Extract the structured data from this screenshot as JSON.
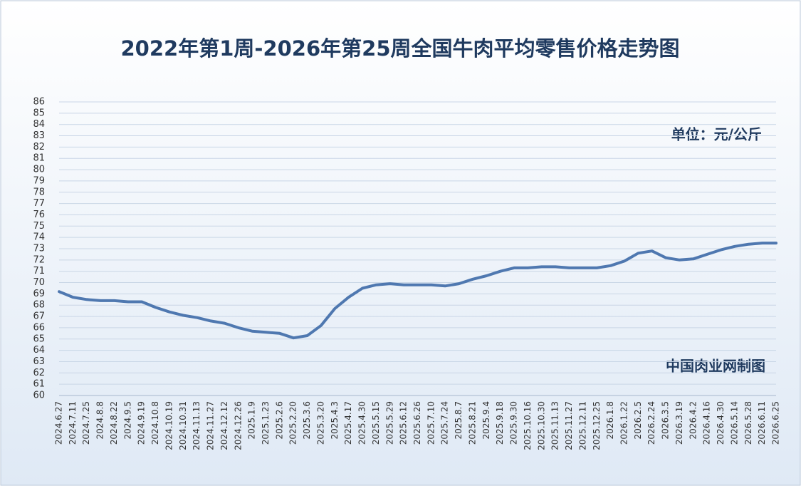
{
  "chart_data": {
    "type": "line",
    "title": "2022年第1周-2026年第25周全国牛肉平均零售价格走势图",
    "unit_label": "单位：元/公斤",
    "source": "中国肉业网制图",
    "categories": [
      "2024.6.27",
      "2024.7.11",
      "2024.7.25",
      "2024.8.8",
      "2024.8.22",
      "2024.9.5",
      "2024.9.19",
      "2024.10.8",
      "2024.10.19",
      "2024.10.31",
      "2024.11.13",
      "2024.11.27",
      "2024.12.12",
      "2024.12.26",
      "2025.1.9",
      "2025.1.23",
      "2025.2.6",
      "2025.2.20",
      "2025.3.6",
      "2025.3.20",
      "2025.4.3",
      "2025.4.17",
      "2025.4.30",
      "2025.5.15",
      "2025.5.29",
      "2025.6.12",
      "2025.6.26",
      "2025.7.10",
      "2025.7.24",
      "2025.8.7",
      "2025.8.21",
      "2025.9.4",
      "2025.9.18",
      "2025.9.30",
      "2025.10.16",
      "2025.10.30",
      "2025.11.13",
      "2025.11.27",
      "2025.12.11",
      "2025.12.25",
      "2026.1.8",
      "2026.1.22",
      "2026.2.5",
      "2026.2.24",
      "2026.3.5",
      "2026.3.19",
      "2026.4.2",
      "2026.4.16",
      "2026.4.30",
      "2026.5.14",
      "2026.5.28",
      "2026.6.11",
      "2026.6.25"
    ],
    "values": [
      69.2,
      68.7,
      68.5,
      68.4,
      68.4,
      68.3,
      68.3,
      67.8,
      67.4,
      67.1,
      66.9,
      66.6,
      66.4,
      66.0,
      65.7,
      65.6,
      65.5,
      65.1,
      65.3,
      66.2,
      67.7,
      68.7,
      69.5,
      69.8,
      69.9,
      69.8,
      69.8,
      69.8,
      69.7,
      69.9,
      70.3,
      70.6,
      71.0,
      71.3,
      71.3,
      71.4,
      71.4,
      71.3,
      71.3,
      71.3,
      71.5,
      71.9,
      72.6,
      72.8,
      72.2,
      72.0,
      72.1,
      72.5,
      72.9,
      73.2,
      73.4,
      73.5,
      73.5
    ],
    "color": "#4f78b0",
    "ylim": [
      60,
      86
    ],
    "yticks": [
      60,
      61,
      62,
      63,
      64,
      65,
      66,
      67,
      68,
      69,
      70,
      71,
      72,
      73,
      74,
      75,
      76,
      77,
      78,
      79,
      80,
      81,
      82,
      83,
      84,
      85,
      86
    ],
    "grid": true
  }
}
